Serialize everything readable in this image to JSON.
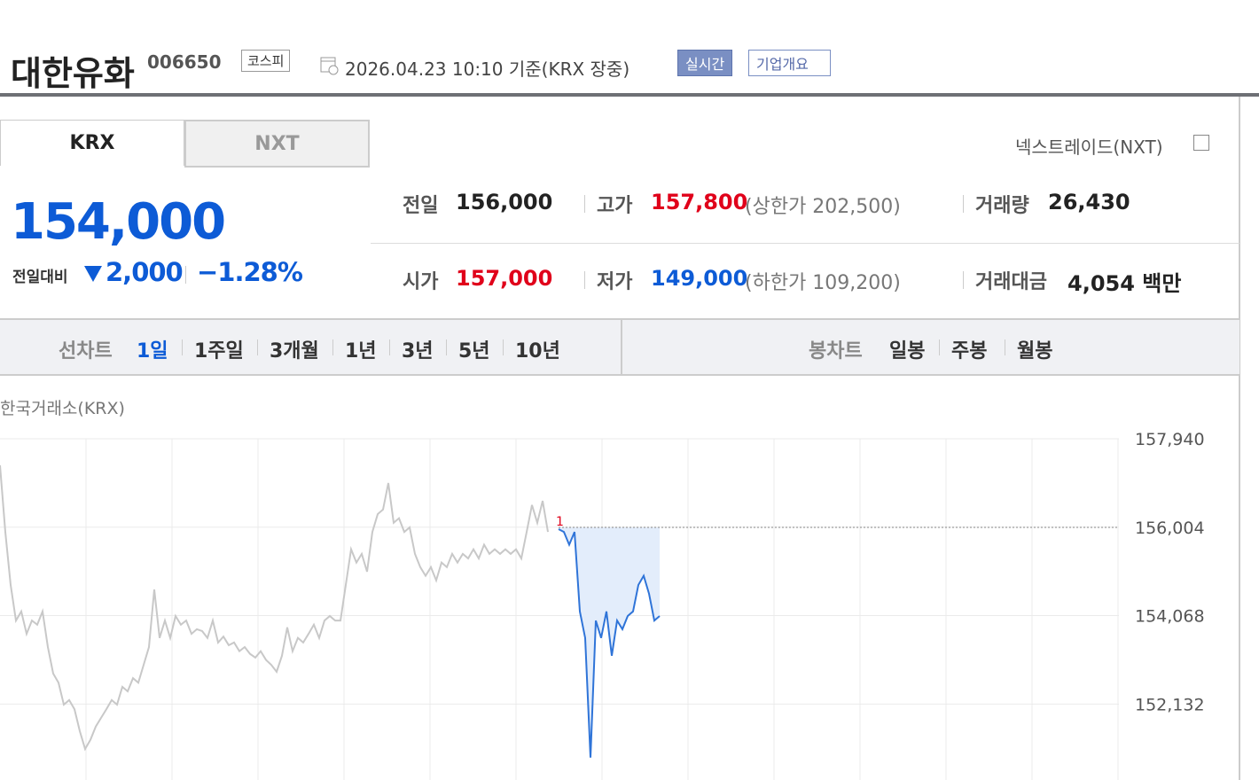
{
  "header": {
    "name": "대한유화",
    "code": "006650",
    "market": "코스피",
    "timestamp": "2026.04.23 10:10 기준(KRX 장중)",
    "realtime": "실시간",
    "company": "기업개요"
  },
  "tabs": [
    "KRX",
    "NXT"
  ],
  "nxt_link": "넥스트레이드(NXT)",
  "quote": {
    "price": "154,000",
    "change_label": "전일대비",
    "change": "2,000",
    "change_pct": "−1.28%"
  },
  "stats": [
    {
      "label": "전일",
      "value": "156,000"
    },
    {
      "label": "고가",
      "value": "157,800",
      "note": "(상한가 202,500)"
    },
    {
      "label": "거래량",
      "value": "26,430"
    },
    {
      "label": "시가",
      "value": "157,000"
    },
    {
      "label": "저가",
      "value": "149,000",
      "note": "(하한가 109,200)"
    },
    {
      "label": "거래대금",
      "value": "4,054 백만"
    }
  ],
  "chart_menu": {
    "line_label": "선차트",
    "periods": [
      "1일",
      "1주일",
      "3개월",
      "1년",
      "3년",
      "5년",
      "10년"
    ],
    "candle_label": "봉차트",
    "candles": [
      "일봉",
      "주봉",
      "월봉"
    ]
  },
  "chart_data": {
    "type": "line",
    "source": "한국거래소(KRX)",
    "marker": "1",
    "ylim": [
      150470,
      157940
    ],
    "yticks": [
      {
        "value": 157940,
        "label": "157,940"
      },
      {
        "value": 156004,
        "label": "156,004"
      },
      {
        "value": 154068,
        "label": "154,068"
      },
      {
        "value": 152132,
        "label": "152,132"
      }
    ],
    "baseline": 156000,
    "series": [
      {
        "color": "#c8c8c8",
        "values": [
          157360,
          155900,
          154740,
          153960,
          154160,
          153670,
          153960,
          153870,
          154160,
          153380,
          152800,
          152600,
          152120,
          152220,
          152020,
          151540,
          151150,
          151350,
          151640,
          151830,
          152020,
          152220,
          152120,
          152510,
          152410,
          152700,
          152600,
          152990,
          153380,
          154640,
          153580,
          153960,
          153580,
          154060,
          153870,
          153960,
          153670,
          153770,
          153730,
          153580,
          153960,
          153480,
          153610,
          153420,
          153480,
          153290,
          153380,
          153230,
          153150,
          153290,
          153100,
          152990,
          152840,
          153190,
          153810,
          153290,
          153580,
          153480,
          153670,
          153870,
          153580,
          153960,
          154060,
          153960,
          153960,
          154740,
          155520,
          155230,
          155420,
          155030,
          155900,
          156290,
          156390,
          156970,
          156100,
          156200,
          155900,
          156000,
          155420,
          155130,
          154940,
          155130,
          154840,
          155230,
          155130,
          155420,
          155230,
          155420,
          155320,
          155520,
          155320,
          155620,
          155420,
          155520,
          155420,
          155520,
          155420,
          155520,
          155320,
          155900,
          156490,
          156100,
          156580,
          155900,
          null,
          null,
          null,
          null,
          null,
          null,
          null,
          null,
          null,
          null,
          null,
          null,
          null,
          null,
          null,
          null,
          null,
          null,
          null,
          null,
          null
        ]
      },
      {
        "color": "#2f74d8",
        "values": [
          null,
          null,
          null,
          null,
          null,
          null,
          null,
          null,
          null,
          null,
          null,
          null,
          null,
          null,
          null,
          null,
          null,
          null,
          null,
          null,
          null,
          null,
          null,
          null,
          null,
          null,
          null,
          null,
          null,
          null,
          null,
          null,
          null,
          null,
          null,
          null,
          null,
          null,
          null,
          null,
          null,
          null,
          null,
          null,
          null,
          null,
          null,
          null,
          null,
          null,
          null,
          null,
          null,
          null,
          null,
          null,
          null,
          null,
          null,
          null,
          null,
          null,
          null,
          null,
          null,
          null,
          null,
          null,
          null,
          null,
          null,
          null,
          null,
          null,
          null,
          null,
          null,
          null,
          null,
          null,
          null,
          null,
          null,
          null,
          null,
          null,
          null,
          null,
          null,
          null,
          null,
          null,
          null,
          null,
          null,
          null,
          null,
          null,
          null,
          null,
          null,
          null,
          null,
          null,
          null,
          155960,
          155900,
          155620,
          155900,
          154160,
          153580,
          150960,
          153960,
          153580,
          154160,
          153190,
          153960,
          153770,
          154060,
          154160,
          154740,
          154940,
          154550,
          153960,
          154060
        ]
      }
    ]
  }
}
